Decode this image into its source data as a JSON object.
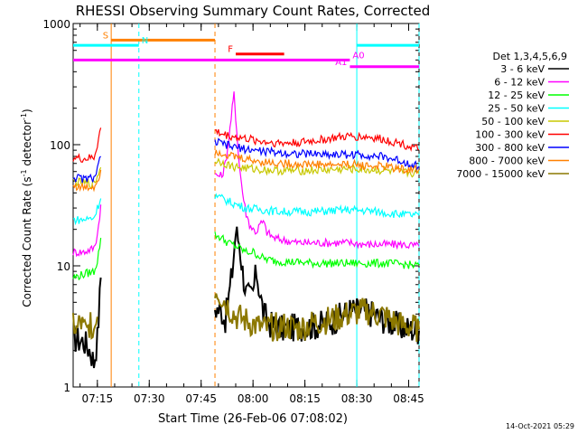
{
  "chart_data": {
    "type": "line",
    "title": "RHESSI Observing Summary Count Rates, Corrected",
    "xlabel": "Start Time (26-Feb-06 07:08:02)",
    "ylabel_main": "Corrected Count Rate (s",
    "ylabel_sup1": "-1",
    "ylabel_mid": " detector",
    "ylabel_sup2": "-1",
    "ylabel_end": ")",
    "yscale": "log",
    "ylim": [
      1,
      1000
    ],
    "xlim_minutes": [
      0,
      100
    ],
    "x_ticks": [
      {
        "label": "07:15",
        "t": 7
      },
      {
        "label": "07:30",
        "t": 22
      },
      {
        "label": "07:45",
        "t": 37
      },
      {
        "label": "08:00",
        "t": 52
      },
      {
        "label": "08:15",
        "t": 67
      },
      {
        "label": "08:30",
        "t": 82
      },
      {
        "label": "08:45",
        "t": 97
      }
    ],
    "y_ticks": [
      {
        "label": "1",
        "v": 1
      },
      {
        "label": "10",
        "v": 10
      },
      {
        "label": "100",
        "v": 100
      },
      {
        "label": "1000",
        "v": 1000
      }
    ],
    "legend_title": "Det 1,3,4,5,6,9",
    "legend_position": "right",
    "series": [
      {
        "name": "3 - 6 keV",
        "color": "#000000",
        "seg1": [
          [
            0,
            2.5
          ],
          [
            3,
            2.4
          ],
          [
            5,
            2.0
          ],
          [
            6,
            1.6
          ],
          [
            7,
            2.5
          ],
          [
            8,
            8
          ]
        ],
        "seg2": [
          [
            41,
            4.5
          ],
          [
            43,
            4.2
          ],
          [
            44,
            3.6
          ],
          [
            45,
            5.5
          ],
          [
            46,
            9
          ],
          [
            47,
            19
          ],
          [
            48,
            16
          ],
          [
            49,
            9
          ],
          [
            50,
            6
          ],
          [
            51,
            5.5
          ],
          [
            52,
            6
          ],
          [
            53,
            9
          ],
          [
            54,
            6
          ],
          [
            55,
            4
          ],
          [
            57,
            3.3
          ],
          [
            60,
            3.0
          ],
          [
            64,
            3.1
          ],
          [
            70,
            3.2
          ],
          [
            75,
            3.5
          ],
          [
            80,
            4.3
          ],
          [
            85,
            4.2
          ],
          [
            90,
            3.6
          ],
          [
            95,
            3.1
          ],
          [
            100,
            2.9
          ]
        ]
      },
      {
        "name": "6 - 12 keV",
        "color": "#ff00ff",
        "seg1": [
          [
            0,
            13
          ],
          [
            3,
            13
          ],
          [
            6,
            14
          ],
          [
            7,
            18
          ],
          [
            8,
            32
          ]
        ],
        "seg2": [
          [
            41,
            56
          ],
          [
            43,
            55
          ],
          [
            44,
            70
          ],
          [
            45,
            110
          ],
          [
            46,
            200
          ],
          [
            46.5,
            260
          ],
          [
            47,
            170
          ],
          [
            48,
            70
          ],
          [
            49,
            40
          ],
          [
            50,
            27
          ],
          [
            51,
            22
          ],
          [
            52,
            20
          ],
          [
            53,
            19
          ],
          [
            54,
            22
          ],
          [
            55,
            23
          ],
          [
            56,
            19
          ],
          [
            58,
            17
          ],
          [
            60,
            16.5
          ],
          [
            65,
            15.5
          ],
          [
            70,
            15.5
          ],
          [
            75,
            15.5
          ],
          [
            80,
            15.5
          ],
          [
            85,
            15
          ],
          [
            90,
            15
          ],
          [
            95,
            15
          ],
          [
            100,
            14.5
          ]
        ]
      },
      {
        "name": "12 - 25 keV",
        "color": "#00ff00",
        "seg1": [
          [
            0,
            8
          ],
          [
            3,
            8.5
          ],
          [
            6,
            9
          ],
          [
            7,
            11
          ],
          [
            8,
            17
          ]
        ],
        "seg2": [
          [
            41,
            18
          ],
          [
            43,
            17
          ],
          [
            44,
            16
          ],
          [
            46,
            15
          ],
          [
            48,
            14
          ],
          [
            50,
            13
          ],
          [
            52,
            13
          ],
          [
            54,
            12
          ],
          [
            55,
            11.5
          ],
          [
            58,
            11
          ],
          [
            62,
            10.8
          ],
          [
            70,
            10.5
          ],
          [
            75,
            10.5
          ],
          [
            80,
            10.5
          ],
          [
            85,
            10.5
          ],
          [
            90,
            10.5
          ],
          [
            95,
            10.3
          ],
          [
            100,
            10
          ]
        ]
      },
      {
        "name": "25 - 50 keV",
        "color": "#00ffff",
        "seg1": [
          [
            0,
            24
          ],
          [
            3,
            24
          ],
          [
            6,
            25
          ],
          [
            7,
            30
          ],
          [
            8,
            36
          ]
        ],
        "seg2": [
          [
            41,
            38
          ],
          [
            43,
            36
          ],
          [
            46,
            33
          ],
          [
            50,
            30
          ],
          [
            55,
            29
          ],
          [
            60,
            28
          ],
          [
            65,
            28
          ],
          [
            70,
            28
          ],
          [
            75,
            28.5
          ],
          [
            80,
            29
          ],
          [
            85,
            28.5
          ],
          [
            90,
            27.5
          ],
          [
            95,
            26.5
          ],
          [
            100,
            26
          ]
        ]
      },
      {
        "name": "50 - 100 keV",
        "color": "#c8c800",
        "seg1": [
          [
            0,
            50
          ],
          [
            3,
            48
          ],
          [
            6,
            47
          ],
          [
            7,
            55
          ],
          [
            8,
            65
          ]
        ],
        "seg2": [
          [
            41,
            74
          ],
          [
            43,
            72
          ],
          [
            46,
            66
          ],
          [
            50,
            64
          ],
          [
            55,
            62
          ],
          [
            60,
            61
          ],
          [
            65,
            61
          ],
          [
            70,
            61.5
          ],
          [
            75,
            62
          ],
          [
            80,
            63
          ],
          [
            85,
            62
          ],
          [
            90,
            61
          ],
          [
            95,
            59
          ],
          [
            100,
            58
          ]
        ]
      },
      {
        "name": "100 - 300 keV",
        "color": "#ff0000",
        "seg1": [
          [
            0,
            78
          ],
          [
            3,
            76
          ],
          [
            6,
            78
          ],
          [
            7,
            100
          ],
          [
            8,
            138
          ]
        ],
        "seg2": [
          [
            41,
            130
          ],
          [
            43,
            122
          ],
          [
            46,
            117
          ],
          [
            50,
            112
          ],
          [
            55,
            106
          ],
          [
            60,
            103
          ],
          [
            65,
            104
          ],
          [
            70,
            108
          ],
          [
            75,
            113
          ],
          [
            80,
            117
          ],
          [
            85,
            116
          ],
          [
            90,
            110
          ],
          [
            95,
            102
          ],
          [
            100,
            91
          ]
        ]
      },
      {
        "name": "300 - 800 keV",
        "color": "#0000ff",
        "seg1": [
          [
            0,
            54
          ],
          [
            3,
            52
          ],
          [
            6,
            53
          ],
          [
            7,
            62
          ],
          [
            8,
            80
          ]
        ],
        "seg2": [
          [
            41,
            105
          ],
          [
            43,
            102
          ],
          [
            46,
            96
          ],
          [
            50,
            92
          ],
          [
            55,
            88
          ],
          [
            60,
            86
          ],
          [
            65,
            84
          ],
          [
            70,
            84
          ],
          [
            75,
            83
          ],
          [
            80,
            83
          ],
          [
            85,
            82
          ],
          [
            90,
            79
          ],
          [
            95,
            73
          ],
          [
            100,
            66
          ]
        ]
      },
      {
        "name": "800 - 7000 keV",
        "color": "#ff8000",
        "seg1": [
          [
            0,
            46
          ],
          [
            3,
            44
          ],
          [
            6,
            45
          ],
          [
            7,
            50
          ],
          [
            8,
            62
          ]
        ],
        "seg2": [
          [
            41,
            88
          ],
          [
            43,
            86
          ],
          [
            46,
            80
          ],
          [
            50,
            76
          ],
          [
            55,
            72
          ],
          [
            60,
            70
          ],
          [
            65,
            69
          ],
          [
            70,
            69
          ],
          [
            75,
            68
          ],
          [
            80,
            69
          ],
          [
            85,
            67
          ],
          [
            90,
            66
          ],
          [
            95,
            63
          ],
          [
            100,
            62
          ]
        ]
      },
      {
        "name": "7000 - 15000 keV",
        "color": "#8c7800",
        "seg1": [
          [
            0,
            3.5
          ],
          [
            1,
            2.8
          ],
          [
            2,
            3.5
          ],
          [
            3,
            3.0
          ],
          [
            4,
            2.8
          ],
          [
            5,
            3.5
          ],
          [
            6,
            3.0
          ],
          [
            7,
            3.8
          ]
        ],
        "seg2": [
          [
            41,
            6.5
          ],
          [
            43,
            5.5
          ],
          [
            45,
            4.5
          ],
          [
            47,
            3.8
          ],
          [
            50,
            3.5
          ],
          [
            55,
            3.0
          ],
          [
            60,
            3.2
          ],
          [
            65,
            3.0
          ],
          [
            70,
            3.4
          ],
          [
            75,
            3.6
          ],
          [
            80,
            4.0
          ],
          [
            85,
            4.2
          ],
          [
            90,
            3.8
          ],
          [
            95,
            3.2
          ],
          [
            100,
            3.0
          ]
        ]
      }
    ],
    "flag_bars": [
      {
        "label": "S",
        "color": "#ff8000",
        "t0": 11,
        "t1": 41,
        "level": 730,
        "label_side": "left"
      },
      {
        "label": "N",
        "color": "#00ffff",
        "t0": 0,
        "t1": 19,
        "level": 660,
        "label_side": "right"
      },
      {
        "label": "N",
        "color": "#00ffff",
        "t0": 82,
        "t1": 100,
        "level": 660,
        "label_side": "none"
      },
      {
        "label": "F",
        "color": "#ff0000",
        "t0": 47,
        "t1": 61,
        "level": 560,
        "label_side": "left"
      },
      {
        "label": "A0",
        "color": "#ff00ff",
        "t0": 0,
        "t1": 80,
        "level": 500,
        "label_side": "right"
      },
      {
        "label": "A1",
        "color": "#ff00ff",
        "t0": 80,
        "t1": 100,
        "level": 440,
        "label_side": "left"
      }
    ],
    "vlines": [
      {
        "t": 11,
        "color": "#ff8000",
        "dashed": false
      },
      {
        "t": 19,
        "color": "#00ffff",
        "dashed": true
      },
      {
        "t": 41,
        "color": "#ff8000",
        "dashed": true
      },
      {
        "t": 82,
        "color": "#00ffff",
        "dashed": false
      },
      {
        "t": 100,
        "color": "#00ffff",
        "dashed": true
      }
    ],
    "footer": "14-Oct-2021 05:29"
  }
}
